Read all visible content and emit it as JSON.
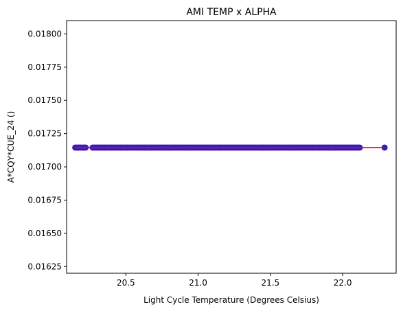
{
  "chart_data": {
    "type": "scatter",
    "title": "AMI TEMP x ALPHA",
    "xlabel": "Light Cycle Temperature (Degrees Celsius)",
    "ylabel": "A*CQY*CUE_24 ()",
    "xlim": [
      20.09,
      22.37
    ],
    "ylim": [
      0.0162,
      0.0181
    ],
    "x_ticks": [
      20.5,
      21.0,
      21.5,
      22.0
    ],
    "x_tick_labels": [
      "20.5",
      "21.0",
      "21.5",
      "22.0"
    ],
    "y_ticks": [
      0.01625,
      0.0165,
      0.01675,
      0.017,
      0.01725,
      0.0175,
      0.01775,
      0.018
    ],
    "y_tick_labels": [
      "0.01625",
      "0.01650",
      "0.01675",
      "0.01700",
      "0.01725",
      "0.01750",
      "0.01775",
      "0.01800"
    ],
    "grid": false,
    "series": [
      {
        "marker_color": "#3d1ab0",
        "y_value": 0.017145,
        "x_segments": [
          [
            20.15,
            20.23
          ],
          [
            20.27,
            22.12
          ]
        ],
        "x_extra": [
          22.29
        ]
      }
    ],
    "fit_line": {
      "color": "#ff0000",
      "x": [
        20.15,
        22.29
      ],
      "y": [
        0.017145,
        0.017145
      ]
    }
  }
}
